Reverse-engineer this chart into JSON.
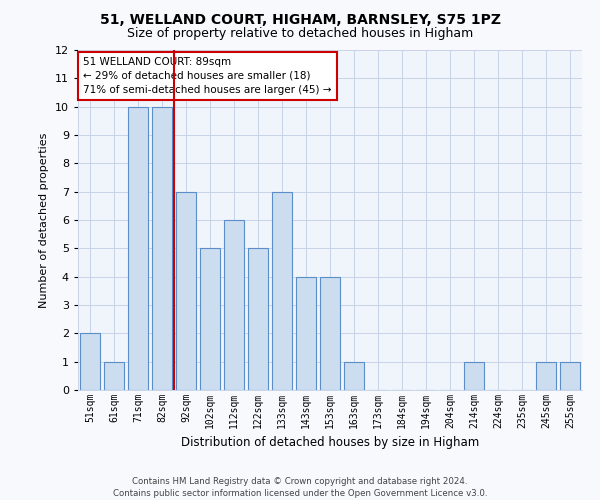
{
  "title1": "51, WELLAND COURT, HIGHAM, BARNSLEY, S75 1PZ",
  "title2": "Size of property relative to detached houses in Higham",
  "xlabel": "Distribution of detached houses by size in Higham",
  "ylabel": "Number of detached properties",
  "categories": [
    "51sqm",
    "61sqm",
    "71sqm",
    "82sqm",
    "92sqm",
    "102sqm",
    "112sqm",
    "122sqm",
    "133sqm",
    "143sqm",
    "153sqm",
    "163sqm",
    "173sqm",
    "184sqm",
    "194sqm",
    "204sqm",
    "214sqm",
    "224sqm",
    "235sqm",
    "245sqm",
    "255sqm"
  ],
  "values": [
    2,
    1,
    10,
    10,
    7,
    5,
    6,
    5,
    7,
    4,
    4,
    1,
    0,
    0,
    0,
    0,
    1,
    0,
    0,
    1,
    1
  ],
  "bar_color": "#ccddf0",
  "bar_edge_color": "#5b8dc8",
  "vline_x": 4,
  "vline_color": "#cc0000",
  "annotation_text": "51 WELLAND COURT: 89sqm\n← 29% of detached houses are smaller (18)\n71% of semi-detached houses are larger (45) →",
  "annotation_box_color": "#ffffff",
  "annotation_box_edge": "#cc0000",
  "ylim": [
    0,
    12
  ],
  "yticks": [
    0,
    1,
    2,
    3,
    4,
    5,
    6,
    7,
    8,
    9,
    10,
    11,
    12
  ],
  "footer": "Contains HM Land Registry data © Crown copyright and database right 2024.\nContains public sector information licensed under the Open Government Licence v3.0.",
  "bg_color": "#f8f9fd",
  "plot_bg_color": "#f0f4fb",
  "grid_color": "#c8d4e8",
  "title1_fontsize": 10,
  "title2_fontsize": 9,
  "bar_width": 0.85
}
